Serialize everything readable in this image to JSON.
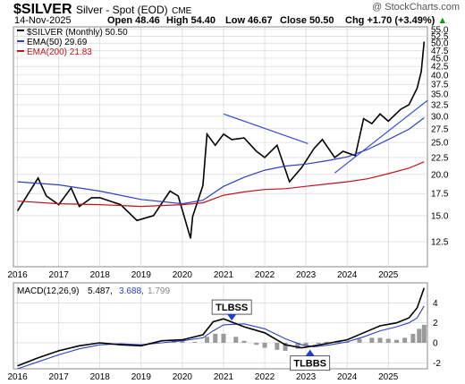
{
  "header": {
    "symbol": "$SILVER",
    "name": "Silver - Spot (EOD)",
    "exchange": "CME",
    "date": "14-Nov-2025",
    "open": "Open 48.46",
    "high": "High 54.40",
    "low": "Low 46.67",
    "close": "Close 50.50",
    "chg": "Chg +1.70 (+3.49%)",
    "chg_arrow": "▲",
    "copyright": "@ StockCharts.com"
  },
  "legend": {
    "price": "$SILVER (Monthly) 50.50",
    "ema50": "EMA(50) 29.69",
    "ema200": "EMA(200) 21.83",
    "macd_label": "MACD(12,26,9)",
    "macd_val": "5.487,",
    "signal_val": "3.688,",
    "hist_val": "1.799"
  },
  "annotations": {
    "tlbss_top": "TLBSS",
    "tlbss_bottom": "TLBBS"
  },
  "colors": {
    "price": "#000000",
    "ema50": "#2f3fc0",
    "ema200": "#c0141c",
    "trendline": "#3a4fd6",
    "hist": "#9a9a9a",
    "macd": "#000000",
    "signal": "#2f3fc0",
    "callout": "#1f3fd0",
    "grid": "#d0d0d0"
  },
  "chart_data": [
    {
      "type": "line",
      "title": "$SILVER (Monthly)",
      "y_scale": "log",
      "ylim": [
        10.5,
        56
      ],
      "y_ticks": [
        "55.0",
        "52.5",
        "50.0",
        "47.5",
        "45.0",
        "42.5",
        "40.0",
        "37.5",
        "35.0",
        "32.5",
        "30.0",
        "27.5",
        "25.0",
        "22.5",
        "20.0",
        "17.5",
        "15.0",
        "12.5"
      ],
      "x_ticks": [
        "2016",
        "2017",
        "2018",
        "2019",
        "2020",
        "2021",
        "2022",
        "2023",
        "2024",
        "2025"
      ],
      "x_range": [
        2015.9,
        2025.95
      ],
      "series": [
        {
          "name": "$SILVER (Monthly)",
          "x": [
            2016.0,
            2016.5,
            2016.7,
            2017.0,
            2017.3,
            2017.5,
            2017.8,
            2018.0,
            2018.5,
            2018.9,
            2019.3,
            2019.7,
            2019.9,
            2020.2,
            2020.25,
            2020.5,
            2020.6,
            2020.8,
            2021.0,
            2021.2,
            2021.5,
            2021.8,
            2022.0,
            2022.3,
            2022.6,
            2022.9,
            2023.2,
            2023.4,
            2023.7,
            2023.9,
            2024.2,
            2024.4,
            2024.6,
            2024.8,
            2025.0,
            2025.3,
            2025.5,
            2025.7,
            2025.8,
            2025.87
          ],
          "y": [
            15.5,
            19.5,
            17.2,
            16.2,
            18.2,
            16.0,
            17.0,
            17.0,
            16.2,
            14.5,
            15.0,
            17.8,
            17.2,
            12.8,
            14.9,
            18.5,
            26.5,
            24.5,
            26.5,
            25.5,
            25.8,
            23.5,
            22.5,
            24.5,
            19.0,
            21.0,
            24.0,
            25.5,
            22.5,
            23.5,
            22.8,
            29.5,
            28.5,
            30.5,
            29.0,
            31.5,
            32.5,
            36.5,
            41.0,
            50.5
          ]
        },
        {
          "name": "EMA(50) 29.69",
          "x": [
            2016.0,
            2017.0,
            2018.0,
            2019.0,
            2020.0,
            2020.5,
            2021.0,
            2021.5,
            2022.0,
            2022.5,
            2023.0,
            2023.5,
            2024.0,
            2024.5,
            2025.0,
            2025.5,
            2025.87
          ],
          "y": [
            19.0,
            18.6,
            17.8,
            16.8,
            16.3,
            16.7,
            18.4,
            19.6,
            20.6,
            21.2,
            21.5,
            22.0,
            22.6,
            23.8,
            25.5,
            27.4,
            29.69
          ]
        },
        {
          "name": "EMA(200) 21.83",
          "x": [
            2016.0,
            2017.0,
            2018.0,
            2019.0,
            2020.0,
            2020.5,
            2021.0,
            2021.5,
            2022.0,
            2022.5,
            2023.0,
            2023.5,
            2024.0,
            2024.5,
            2025.0,
            2025.5,
            2025.87
          ],
          "y": [
            16.6,
            16.3,
            16.2,
            16.0,
            16.2,
            16.4,
            17.3,
            17.7,
            18.0,
            18.1,
            18.4,
            18.7,
            19.0,
            19.4,
            20.1,
            20.9,
            21.83
          ]
        }
      ],
      "trendlines": [
        {
          "x": [
            2021.0,
            2023.05
          ],
          "y": [
            30.5,
            24.8
          ]
        },
        {
          "x": [
            2023.7,
            2025.95
          ],
          "y": [
            20.2,
            33.5
          ]
        }
      ]
    },
    {
      "type": "line",
      "title": "MACD(12,26,9)",
      "ylim": [
        -2.6,
        6.0
      ],
      "y_ticks": [
        4,
        2,
        0,
        -2
      ],
      "x_ticks": [
        "2016",
        "2017",
        "2018",
        "2019",
        "2020",
        "2021",
        "2022",
        "2023",
        "2024",
        "2025"
      ],
      "x_range": [
        2015.9,
        2025.95
      ],
      "series": [
        {
          "name": "MACD",
          "x": [
            2016.0,
            2016.5,
            2017.0,
            2017.5,
            2018.0,
            2018.5,
            2019.0,
            2019.5,
            2020.0,
            2020.5,
            2020.75,
            2021.0,
            2021.5,
            2022.0,
            2022.5,
            2022.9,
            2023.2,
            2023.6,
            2024.0,
            2024.4,
            2024.8,
            2025.2,
            2025.5,
            2025.7,
            2025.87
          ],
          "y": [
            -2.3,
            -1.5,
            -0.8,
            -0.3,
            0.0,
            -0.2,
            -0.3,
            0.2,
            0.3,
            0.8,
            2.1,
            2.4,
            1.6,
            1.0,
            -0.2,
            -0.5,
            -0.3,
            0.0,
            0.3,
            1.0,
            1.7,
            2.0,
            2.5,
            3.5,
            5.487
          ]
        },
        {
          "name": "Signal",
          "x": [
            2016.0,
            2016.5,
            2017.0,
            2017.5,
            2018.0,
            2018.5,
            2019.0,
            2019.5,
            2020.0,
            2020.5,
            2020.75,
            2021.0,
            2021.5,
            2022.0,
            2022.5,
            2022.9,
            2023.2,
            2023.6,
            2024.0,
            2024.4,
            2024.8,
            2025.2,
            2025.5,
            2025.7,
            2025.87
          ],
          "y": [
            -2.6,
            -1.9,
            -1.2,
            -0.6,
            -0.2,
            -0.1,
            -0.2,
            0.0,
            0.2,
            0.5,
            1.2,
            1.8,
            1.9,
            1.4,
            0.4,
            -0.2,
            -0.4,
            -0.2,
            0.1,
            0.6,
            1.2,
            1.6,
            2.0,
            2.5,
            3.688
          ]
        },
        {
          "name": "Histogram",
          "x": [
            2019.8,
            2020.0,
            2020.3,
            2020.6,
            2020.8,
            2021.0,
            2021.3,
            2021.5,
            2021.8,
            2022.0,
            2022.3,
            2022.5,
            2022.8,
            2023.0,
            2023.3,
            2023.5,
            2023.8,
            2024.0,
            2024.3,
            2024.6,
            2024.8,
            2025.0,
            2025.2,
            2025.4,
            2025.6,
            2025.75,
            2025.87
          ],
          "y": [
            0.2,
            0.3,
            0.1,
            0.6,
            0.9,
            0.9,
            0.6,
            0.2,
            -0.2,
            -0.5,
            -0.7,
            -0.8,
            -0.6,
            -0.3,
            -0.1,
            0.1,
            0.2,
            0.1,
            0.4,
            0.5,
            0.5,
            0.4,
            0.3,
            0.5,
            0.9,
            1.4,
            1.799
          ]
        }
      ],
      "callouts": [
        {
          "label_key": "tlbss_top",
          "x": 2021.2,
          "y": 2.5
        },
        {
          "label_key": "tlbss_bottom",
          "x": 2023.1,
          "y": -0.6
        }
      ]
    }
  ]
}
